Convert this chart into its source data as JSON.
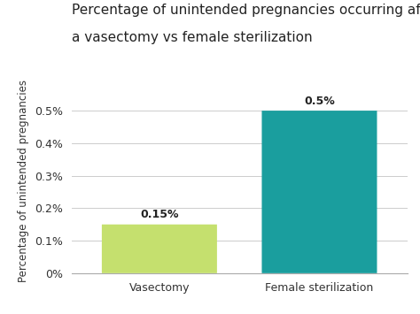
{
  "categories": [
    "Vasectomy",
    "Female sterilization"
  ],
  "values": [
    0.0015,
    0.005
  ],
  "bar_colors": [
    "#c5e06e",
    "#1a9e9e"
  ],
  "bar_labels": [
    "0.15%",
    "0.5%"
  ],
  "title_line1": "Percentage of unintended pregnancies occurring after",
  "title_line2": "a vasectomy vs female sterilization",
  "ylabel": "Percentage of unintended pregnancies",
  "ylim": [
    0,
    0.0057
  ],
  "yticks": [
    0,
    0.001,
    0.002,
    0.003,
    0.004,
    0.005
  ],
  "ytick_labels": [
    "0%",
    "0.1%",
    "0.2%",
    "0.3%",
    "0.4%",
    "0.5%"
  ],
  "background_color": "#ffffff",
  "title_fontsize": 11.0,
  "label_fontsize": 8.5,
  "tick_fontsize": 9,
  "bar_label_fontsize": 9
}
